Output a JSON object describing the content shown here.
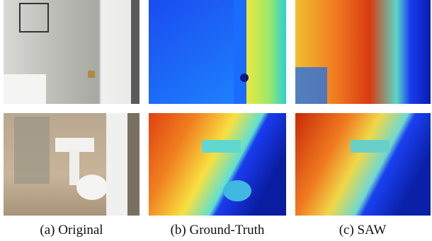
{
  "captions": [
    "(a) Original",
    "(b) Ground-Truth",
    "(c) SAW"
  ]
}
